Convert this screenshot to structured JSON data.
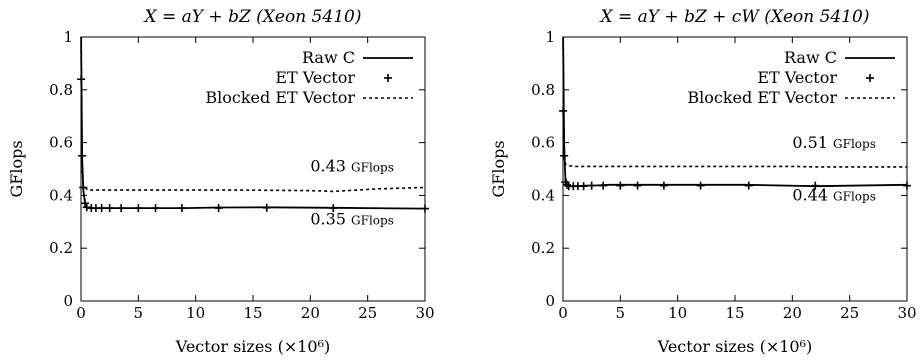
{
  "chart_data": [
    {
      "type": "line",
      "title": "X = aY + bZ (Xeon 5410)",
      "xlabel": "Vector sizes (×10⁶)",
      "ylabel": "GFlops",
      "xlim": [
        0,
        30
      ],
      "ylim": [
        0,
        1
      ],
      "xticks": [
        "0",
        "5",
        "10",
        "15",
        "20",
        "25",
        "30"
      ],
      "yticks": [
        "0",
        "0.2",
        "0.4",
        "0.6",
        "0.8",
        "1"
      ],
      "grid": false,
      "legend_position": "top-right",
      "series": [
        {
          "name": "Raw C",
          "style": "solid",
          "x": [
            0.01,
            0.1,
            0.2,
            0.35,
            0.5,
            0.8,
            1.2,
            2,
            3,
            4,
            6,
            9,
            12,
            16,
            22,
            30
          ],
          "y": [
            1.0,
            0.55,
            0.42,
            0.37,
            0.355,
            0.352,
            0.352,
            0.352,
            0.352,
            0.352,
            0.352,
            0.352,
            0.354,
            0.355,
            0.353,
            0.35
          ]
        },
        {
          "name": "ET Vector",
          "style": "markers",
          "x": [
            0.01,
            0.1,
            0.2,
            0.35,
            0.5,
            0.9,
            1.3,
            1.8,
            2.5,
            3.5,
            5,
            6.5,
            8.8,
            12,
            16.2,
            22,
            30
          ],
          "y": [
            0.84,
            0.55,
            0.43,
            0.37,
            0.355,
            0.352,
            0.352,
            0.352,
            0.352,
            0.352,
            0.352,
            0.352,
            0.352,
            0.352,
            0.353,
            0.352,
            0.35
          ]
        },
        {
          "name": "Blocked ET Vector",
          "style": "dashed",
          "x": [
            0.01,
            0.1,
            0.2,
            0.35,
            0.6,
            1,
            3,
            8,
            14,
            20,
            22,
            26,
            30
          ],
          "y": [
            0.95,
            0.5,
            0.44,
            0.43,
            0.42,
            0.42,
            0.42,
            0.42,
            0.42,
            0.418,
            0.415,
            0.425,
            0.43
          ]
        }
      ],
      "annotations": [
        {
          "value": "0.43",
          "unit": "GFlops",
          "x": 20,
          "y": 0.49
        },
        {
          "value": "0.35",
          "unit": "GFlops",
          "x": 20,
          "y": 0.29
        }
      ]
    },
    {
      "type": "line",
      "title": "X = aY + bZ + cW (Xeon 5410)",
      "xlabel": "Vector sizes (×10⁶)",
      "ylabel": "GFlops",
      "xlim": [
        0,
        30
      ],
      "ylim": [
        0,
        1
      ],
      "xticks": [
        "0",
        "5",
        "10",
        "15",
        "20",
        "25",
        "30"
      ],
      "yticks": [
        "0",
        "0.2",
        "0.4",
        "0.6",
        "0.8",
        "1"
      ],
      "grid": false,
      "legend_position": "top-right",
      "series": [
        {
          "name": "Raw C",
          "style": "solid",
          "x": [
            0.01,
            0.1,
            0.2,
            0.35,
            0.5,
            0.8,
            1.2,
            2,
            3,
            4,
            6,
            9,
            12,
            16,
            22,
            30
          ],
          "y": [
            1.0,
            0.6,
            0.47,
            0.44,
            0.435,
            0.435,
            0.435,
            0.437,
            0.438,
            0.44,
            0.44,
            0.44,
            0.44,
            0.44,
            0.435,
            0.44
          ]
        },
        {
          "name": "ET Vector",
          "style": "markers",
          "x": [
            0.01,
            0.1,
            0.2,
            0.35,
            0.5,
            0.9,
            1.3,
            1.8,
            2.5,
            3.5,
            5,
            6.5,
            8.8,
            12,
            16.2,
            22,
            30
          ],
          "y": [
            0.72,
            0.55,
            0.45,
            0.44,
            0.435,
            0.435,
            0.435,
            0.435,
            0.437,
            0.437,
            0.437,
            0.437,
            0.437,
            0.437,
            0.437,
            0.437,
            0.437
          ]
        },
        {
          "name": "Blocked ET Vector",
          "style": "dashed",
          "x": [
            0.01,
            0.1,
            0.2,
            0.35,
            0.6,
            1,
            3,
            8,
            14,
            20,
            22,
            26,
            30
          ],
          "y": [
            0.98,
            0.58,
            0.52,
            0.515,
            0.512,
            0.51,
            0.51,
            0.51,
            0.51,
            0.51,
            0.508,
            0.508,
            0.508
          ]
        }
      ],
      "annotations": [
        {
          "value": "0.51",
          "unit": "GFlops",
          "x": 20,
          "y": 0.58
        },
        {
          "value": "0.44",
          "unit": "GFlops",
          "x": 20,
          "y": 0.38
        }
      ]
    }
  ]
}
